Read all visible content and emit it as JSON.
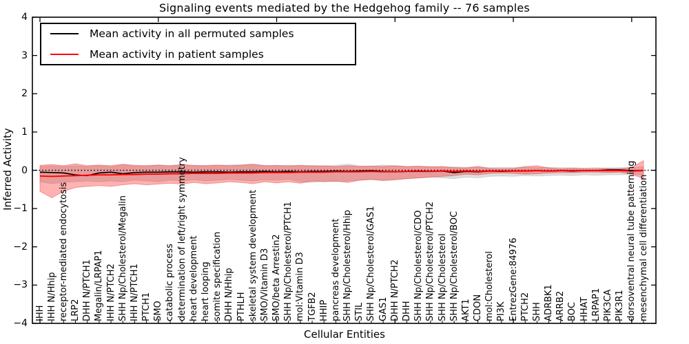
{
  "figure": {
    "background": "#ffffff",
    "frame_color": "#000000"
  },
  "chart_data": {
    "type": "line",
    "title": "Signaling events mediated by the Hedgehog family -- 76 samples",
    "xlabel": "Cellular Entities",
    "ylabel": "Inferred Activity",
    "ylim": [
      -4,
      4
    ],
    "yticks": [
      -4,
      -3,
      -2,
      -1,
      0,
      1,
      2,
      3,
      4
    ],
    "ytick_labels": [
      "−4",
      "−3",
      "−2",
      "−1",
      "0",
      "1",
      "2",
      "3",
      "4"
    ],
    "grid": false,
    "zero_line": {
      "y": 0,
      "style": "dotted",
      "color": "#000000"
    },
    "legend_position": "upper left",
    "categories": [
      "IHH",
      "IHH N/Hhip",
      "receptor-mediated endocytosis",
      "LRP2",
      "DHH N/PTCH1",
      "Megalin/LRPAP1",
      "IHH N/PTCH2",
      "SHH Np/Cholesterol/Megalin",
      "IHH N/PTCH1",
      "PTCH1",
      "SMO",
      "catabolic process",
      "determination of left/right symmetry",
      "heart development",
      "heart looping",
      "somite specification",
      "DHH N/Hhip",
      "PTHLH",
      "skeletal system development",
      "SMO/Vitamin D3",
      "SMO/beta Arrestin2",
      "SHH Np/Cholesterol/PTCH1",
      "mol:Vitamin D3",
      "TGFB2",
      "HHIP",
      "pancreas development",
      "SHH Np/Cholesterol/Hhip",
      "STIL",
      "SHH Np/Cholesterol/GAS1",
      "GAS1",
      "DHH N/PTCH2",
      "DHH",
      "SHH Np/Cholesterol/CDO",
      "SHH Np/Cholesterol/PTCH2",
      "SHH Np/Cholesterol",
      "SHH Np/Cholesterol/BOC",
      "AKT1",
      "CDON",
      "mol:Cholesterol",
      "PI3K",
      "EntrezGene:84976",
      "PTCH2",
      "SHH",
      "ADRBK1",
      "ARRB2",
      "BOC",
      "HHAT",
      "LRPAP1",
      "PIK3CA",
      "PIK3R1",
      "dorsoventral neural tube patterning",
      "mesenchymal cell differentiation"
    ],
    "series": [
      {
        "name": "Mean activity in all permuted samples",
        "color": "#000000",
        "values": [
          -0.05,
          -0.06,
          -0.07,
          -0.12,
          -0.14,
          -0.07,
          -0.05,
          -0.09,
          -0.06,
          -0.05,
          -0.05,
          -0.04,
          -0.04,
          -0.05,
          -0.04,
          -0.04,
          -0.05,
          -0.04,
          -0.04,
          -0.03,
          -0.04,
          -0.03,
          -0.04,
          -0.03,
          -0.03,
          -0.02,
          -0.03,
          -0.02,
          -0.01,
          -0.03,
          -0.04,
          -0.03,
          -0.02,
          -0.03,
          -0.02,
          -0.06,
          -0.03,
          -0.04,
          -0.02,
          -0.03,
          -0.02,
          -0.02,
          -0.01,
          -0.02,
          -0.01,
          -0.02,
          -0.01,
          -0.01,
          0.01,
          0.01,
          -0.01,
          -0.01
        ]
      },
      {
        "name": "Mean activity in patient samples",
        "color": "#ff0000",
        "values": [
          -0.15,
          -0.16,
          -0.15,
          -0.14,
          -0.13,
          -0.12,
          -0.12,
          -0.11,
          -0.11,
          -0.1,
          -0.1,
          -0.09,
          -0.09,
          -0.08,
          -0.08,
          -0.08,
          -0.07,
          -0.07,
          -0.07,
          -0.06,
          -0.06,
          -0.06,
          -0.05,
          -0.05,
          -0.05,
          -0.04,
          -0.04,
          -0.04,
          -0.03,
          -0.04,
          -0.04,
          -0.03,
          -0.03,
          -0.03,
          -0.02,
          -0.03,
          -0.02,
          -0.03,
          -0.02,
          -0.02,
          -0.02,
          -0.02,
          -0.01,
          -0.02,
          -0.01,
          -0.01,
          -0.01,
          -0.01,
          -0.01,
          -0.01,
          -0.02,
          -0.01
        ]
      }
    ],
    "bands": [
      {
        "name": "permuted-samples-range",
        "fill": "rgba(0,0,0,0.13)",
        "edge": "rgba(0,0,0,0.10)",
        "upper": [
          0.1,
          0.12,
          0.1,
          0.12,
          0.1,
          0.12,
          0.1,
          0.14,
          0.11,
          0.12,
          0.13,
          0.12,
          0.14,
          0.12,
          0.13,
          0.12,
          0.14,
          0.15,
          0.17,
          0.13,
          0.12,
          0.14,
          0.12,
          0.13,
          0.11,
          0.13,
          0.16,
          0.12,
          0.11,
          0.14,
          0.12,
          0.1,
          0.09,
          0.1,
          0.08,
          0.09,
          0.08,
          0.09,
          0.07,
          0.08,
          0.07,
          0.08,
          0.07,
          0.08,
          0.07,
          0.07,
          0.06,
          0.07,
          0.06,
          0.07,
          0.06,
          0.1
        ],
        "lower": [
          -0.3,
          -0.35,
          -0.32,
          -0.3,
          -0.28,
          -0.3,
          -0.28,
          -0.3,
          -0.26,
          -0.28,
          -0.3,
          -0.26,
          -0.28,
          -0.25,
          -0.28,
          -0.26,
          -0.24,
          -0.26,
          -0.28,
          -0.25,
          -0.26,
          -0.24,
          -0.3,
          -0.32,
          -0.28,
          -0.3,
          -0.28,
          -0.26,
          -0.24,
          -0.26,
          -0.24,
          -0.22,
          -0.2,
          -0.18,
          -0.2,
          -0.22,
          -0.18,
          -0.2,
          -0.16,
          -0.15,
          -0.16,
          -0.14,
          -0.15,
          -0.14,
          -0.13,
          -0.14,
          -0.12,
          -0.13,
          -0.12,
          -0.12,
          -0.11,
          -0.12
        ]
      },
      {
        "name": "patient-samples-range",
        "fill": "rgba(255,0,0,0.30)",
        "edge": "rgba(230,60,60,0.45)",
        "upper": [
          0.13,
          0.15,
          0.12,
          0.17,
          0.12,
          0.14,
          0.12,
          0.16,
          0.13,
          0.12,
          0.14,
          0.12,
          0.15,
          0.13,
          0.12,
          0.14,
          0.12,
          0.13,
          0.15,
          0.12,
          0.13,
          0.11,
          0.13,
          0.11,
          0.12,
          0.1,
          0.12,
          0.1,
          0.11,
          0.1,
          0.12,
          0.1,
          0.11,
          0.09,
          0.1,
          0.07,
          0.06,
          0.1,
          0.05,
          0.04,
          0.05,
          0.1,
          0.12,
          0.06,
          0.04,
          0.05,
          0.04,
          0.04,
          0.05,
          0.04,
          0.08,
          0.25
        ],
        "lower": [
          -0.55,
          -0.72,
          -0.55,
          -0.45,
          -0.42,
          -0.4,
          -0.42,
          -0.38,
          -0.35,
          -0.38,
          -0.36,
          -0.34,
          -0.36,
          -0.32,
          -0.35,
          -0.33,
          -0.3,
          -0.32,
          -0.35,
          -0.3,
          -0.33,
          -0.3,
          -0.34,
          -0.28,
          -0.3,
          -0.28,
          -0.32,
          -0.26,
          -0.24,
          -0.27,
          -0.25,
          -0.22,
          -0.2,
          -0.18,
          -0.16,
          -0.14,
          -0.1,
          -0.12,
          -0.08,
          -0.07,
          -0.08,
          -0.1,
          -0.09,
          -0.07,
          -0.06,
          -0.06,
          -0.05,
          -0.05,
          -0.06,
          -0.05,
          -0.1,
          -0.22
        ]
      }
    ]
  },
  "legend": {
    "entries": [
      {
        "label": "Mean activity in all permuted samples",
        "color": "#000000"
      },
      {
        "label": "Mean activity in patient samples",
        "color": "#ff0000"
      }
    ]
  }
}
